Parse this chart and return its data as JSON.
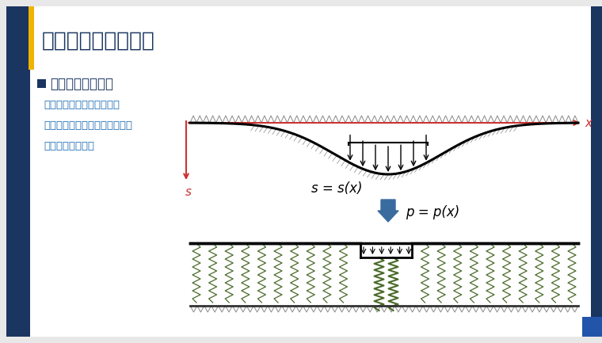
{
  "title": "浅基础挠曲分析模型",
  "title_color": "#1a3560",
  "title_fontsize": 19,
  "bg_color": "#e8e8e8",
  "slide_bg": "#ffffff",
  "accent_dark": "#1a3560",
  "accent_yellow": "#f0b400",
  "accent_blue": "#1e6eb5",
  "text_color_blue": "#1e6eb5",
  "text_color_dark": "#1a3560",
  "subtitle": "柔性地基挠曲变形",
  "bullet1": "口基础结构以挠曲变形为主",
  "bullet2": "口基础与下部土体始终保持接触",
  "bullet3": "口高度非线性变形",
  "label_s": "s = s(x)",
  "label_p": "p = p(x)",
  "axis_x": "x",
  "axis_s": "s",
  "spring_color": "#4a6b2a",
  "arrow_color": "#3a6b9f",
  "hatch_color": "#888888",
  "red_color": "#cc3333"
}
